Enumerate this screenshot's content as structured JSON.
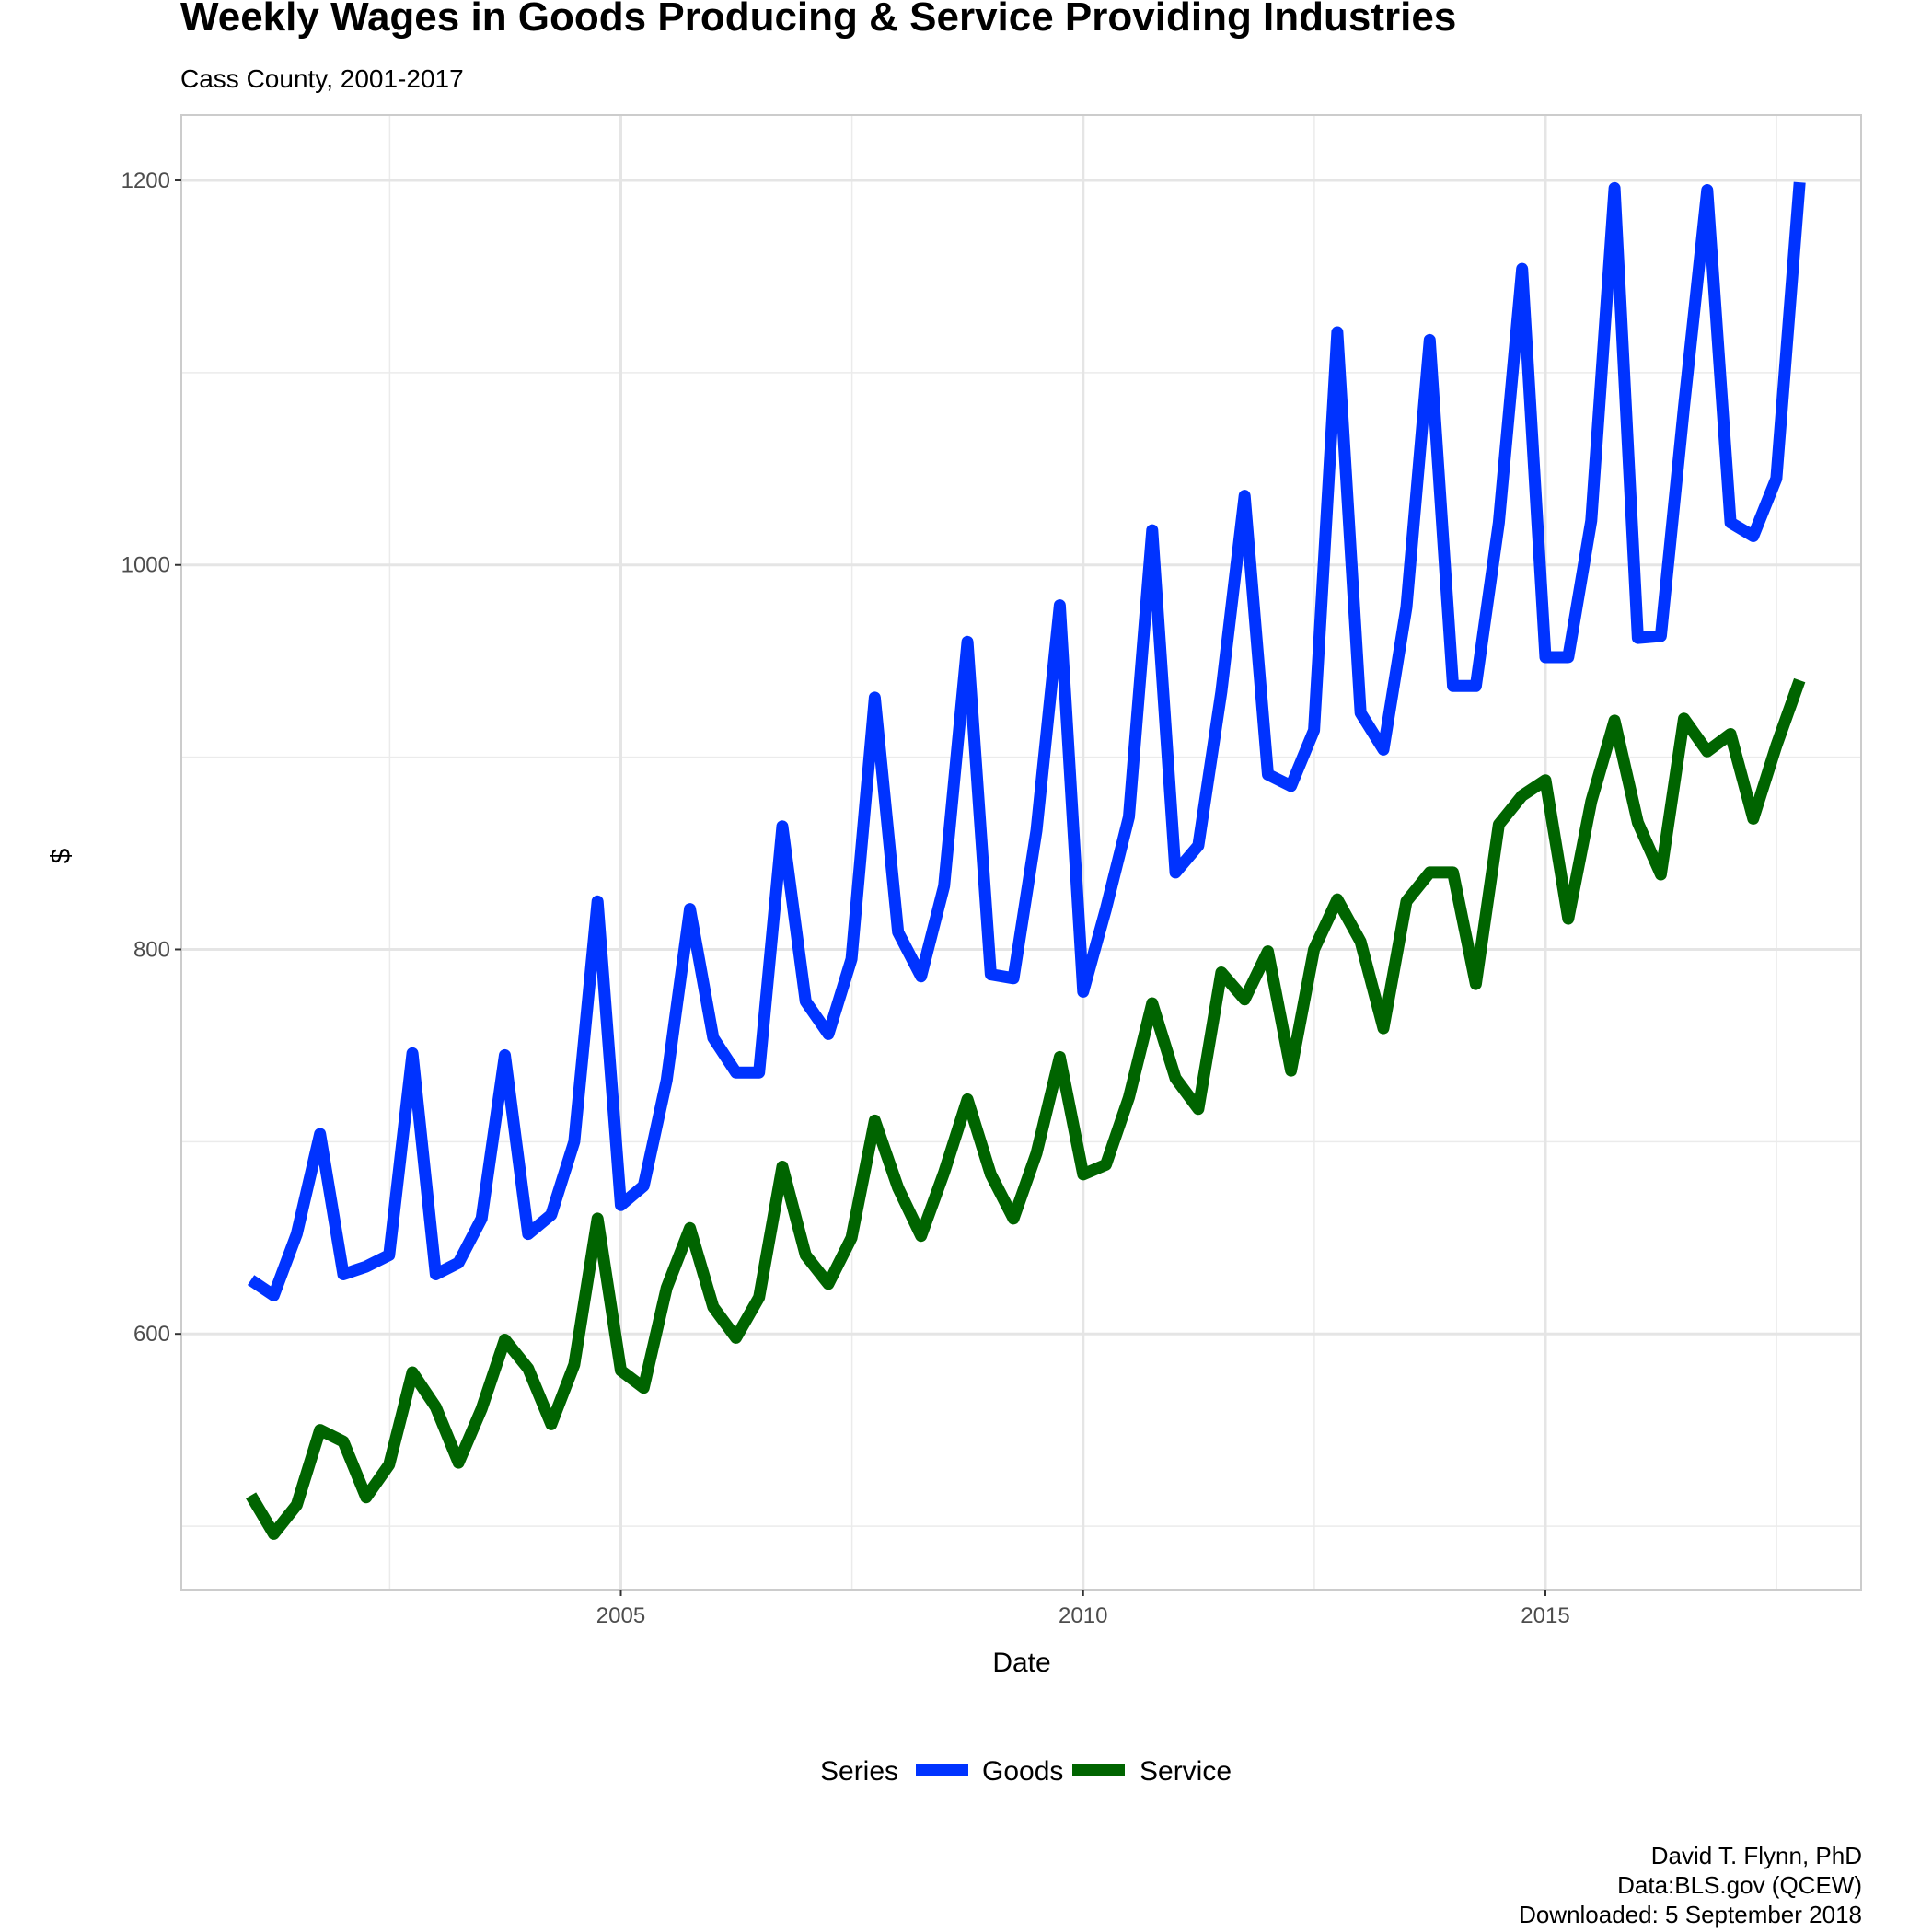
{
  "chart_data": {
    "type": "line",
    "title": "Weekly Wages in Goods Producing & Service Providing Industries",
    "subtitle": "Cass County, 2001-2017",
    "xlabel": "Date",
    "ylabel": "$",
    "xlim": [
      "2000-04-01",
      "2018-06-01"
    ],
    "ylim": [
      467,
      1234
    ],
    "x_ticks": [
      {
        "value": "2005-01-01",
        "label": "2005"
      },
      {
        "value": "2010-01-01",
        "label": "2010"
      },
      {
        "value": "2015-01-01",
        "label": "2015"
      }
    ],
    "y_ticks": [
      {
        "value": 600,
        "label": "600"
      },
      {
        "value": 800,
        "label": "800"
      },
      {
        "value": 1000,
        "label": "1000"
      },
      {
        "value": 1200,
        "label": "1200"
      }
    ],
    "grid": true,
    "legend_title": "Series",
    "legend_position": "bottom",
    "x": [
      "2001-01-01",
      "2001-04-01",
      "2001-07-01",
      "2001-10-01",
      "2002-01-01",
      "2002-04-01",
      "2002-07-01",
      "2002-10-01",
      "2003-01-01",
      "2003-04-01",
      "2003-07-01",
      "2003-10-01",
      "2004-01-01",
      "2004-04-01",
      "2004-07-01",
      "2004-10-01",
      "2005-01-01",
      "2005-04-01",
      "2005-07-01",
      "2005-10-01",
      "2006-01-01",
      "2006-04-01",
      "2006-07-01",
      "2006-10-01",
      "2007-01-01",
      "2007-04-01",
      "2007-07-01",
      "2007-10-01",
      "2008-01-01",
      "2008-04-01",
      "2008-07-01",
      "2008-10-01",
      "2009-01-01",
      "2009-04-01",
      "2009-07-01",
      "2009-10-01",
      "2010-01-01",
      "2010-04-01",
      "2010-07-01",
      "2010-10-01",
      "2011-01-01",
      "2011-04-01",
      "2011-07-01",
      "2011-10-01",
      "2012-01-01",
      "2012-04-01",
      "2012-07-01",
      "2012-10-01",
      "2013-01-01",
      "2013-04-01",
      "2013-07-01",
      "2013-10-01",
      "2014-01-01",
      "2014-04-01",
      "2014-07-01",
      "2014-10-01",
      "2015-01-01",
      "2015-04-01",
      "2015-07-01",
      "2015-10-01",
      "2016-01-01",
      "2016-04-01",
      "2016-07-01",
      "2016-10-01",
      "2017-01-01",
      "2017-04-01",
      "2017-07-01",
      "2017-10-01"
    ],
    "series": [
      {
        "name": "Goods",
        "color": "#0033ff",
        "values": [
          628,
          620,
          652,
          704,
          631,
          635,
          641,
          746,
          631,
          637,
          660,
          745,
          652,
          662,
          700,
          825,
          667,
          677,
          732,
          821,
          754,
          736,
          736,
          864,
          773,
          756,
          795,
          931,
          809,
          786,
          833,
          960,
          787,
          785,
          862,
          979,
          778,
          821,
          869,
          1018,
          840,
          854,
          934,
          1036,
          891,
          885,
          914,
          1121,
          923,
          904,
          978,
          1117,
          937,
          937,
          1022,
          1154,
          952,
          952,
          1023,
          1196,
          962,
          963,
          1082,
          1195,
          1022,
          1015,
          1045,
          1199
        ]
      },
      {
        "name": "Service",
        "color": "#006400",
        "values": [
          516,
          496,
          511,
          550,
          544,
          515,
          532,
          580,
          562,
          533,
          561,
          597,
          582,
          553,
          584,
          660,
          581,
          572,
          624,
          655,
          614,
          598,
          619,
          687,
          641,
          626,
          650,
          711,
          676,
          651,
          684,
          722,
          683,
          660,
          694,
          744,
          683,
          688,
          723,
          772,
          733,
          717,
          788,
          774,
          799,
          737,
          800,
          826,
          804,
          759,
          825,
          840,
          840,
          782,
          865,
          880,
          888,
          816,
          877,
          919,
          866,
          839,
          920,
          903,
          912,
          868,
          906,
          940
        ]
      }
    ]
  },
  "caption": {
    "line1": "David T. Flynn, PhD",
    "line2": "Data:BLS.gov (QCEW)",
    "line3": "Downloaded: 5 September 2018"
  }
}
